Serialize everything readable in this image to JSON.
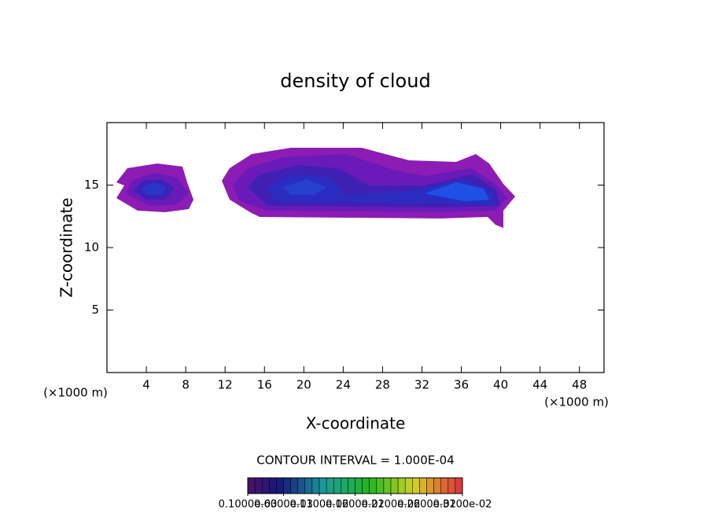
{
  "chart_data": {
    "type": "contour",
    "title": "density of cloud",
    "x_label": "X-coordinate",
    "y_label": "Z-coordinate",
    "x_unit": "(×1000 m)",
    "xlim": [
      0,
      50.5
    ],
    "xticks": [
      4,
      8,
      12,
      16,
      20,
      24,
      28,
      32,
      36,
      40,
      44,
      48
    ],
    "ylim": [
      0,
      20
    ],
    "yticks": [
      5,
      10,
      15
    ],
    "annotation": "CONTOUR INTERVAL = 1.000E-04",
    "colorbar_ticks": [
      {
        "value": 0.0001,
        "label": "0.1000e-03"
      },
      {
        "value": 0.0006,
        "label": "0.6000e-03"
      },
      {
        "value": 0.0011,
        "label": "0.1100e-02"
      },
      {
        "value": 0.0016,
        "label": "0.1600e-02"
      },
      {
        "value": 0.0021,
        "label": "0.2100e-02"
      },
      {
        "value": 0.0026,
        "label": "0.2600e-02"
      },
      {
        "value": 0.0031,
        "label": "0.3100e-02"
      }
    ]
  }
}
